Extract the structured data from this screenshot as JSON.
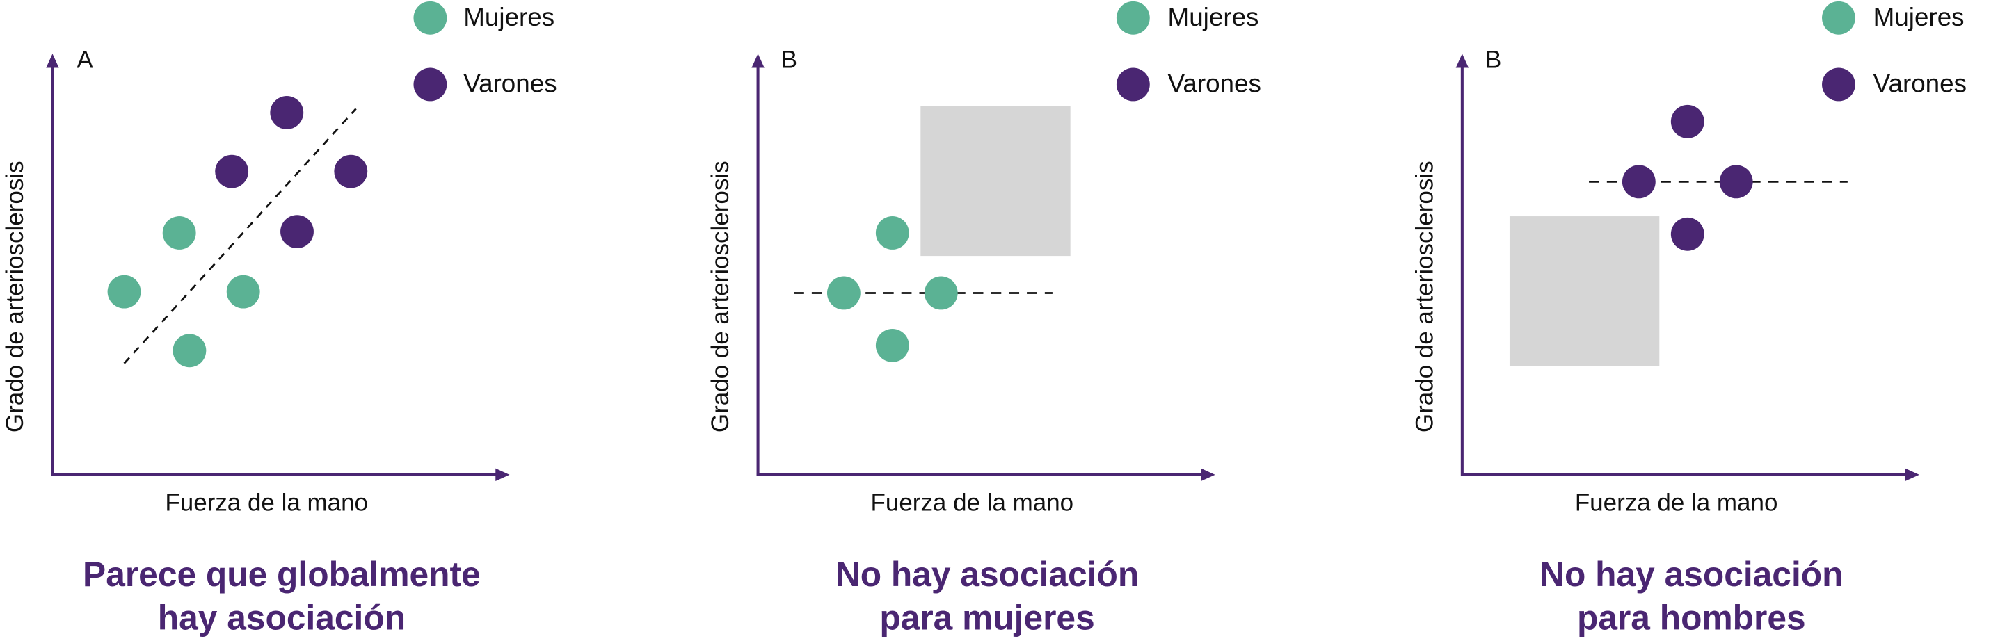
{
  "colors": {
    "mujeres": "#5bb294",
    "varones": "#4a2672",
    "axis": "#4a2672",
    "box": "#d6d6d6",
    "caption": "#4a2672"
  },
  "panels": [
    {
      "id": "A",
      "letter": "A",
      "ylabel": "Grado de arteriosclerosis",
      "xlabel": "Fuerza de la mano",
      "legend": {
        "mujeres": "Mujeres",
        "varones": "Varones"
      },
      "caption": [
        "Parece que globalmente",
        "hay asociación"
      ]
    },
    {
      "id": "B1",
      "letter": "B",
      "ylabel": "Grado de arteriosclerosis",
      "xlabel": "Fuerza de la mano",
      "legend": {
        "mujeres": "Mujeres",
        "varones": "Varones"
      },
      "caption": [
        "No hay asociación",
        "para mujeres"
      ]
    },
    {
      "id": "B2",
      "letter": "B",
      "ylabel": "Grado de arteriosclerosis",
      "xlabel": "Fuerza de la mano",
      "legend": {
        "mujeres": "Mujeres",
        "varones": "Varones"
      },
      "caption": [
        "No hay asociación",
        "para hombres"
      ]
    }
  ]
}
